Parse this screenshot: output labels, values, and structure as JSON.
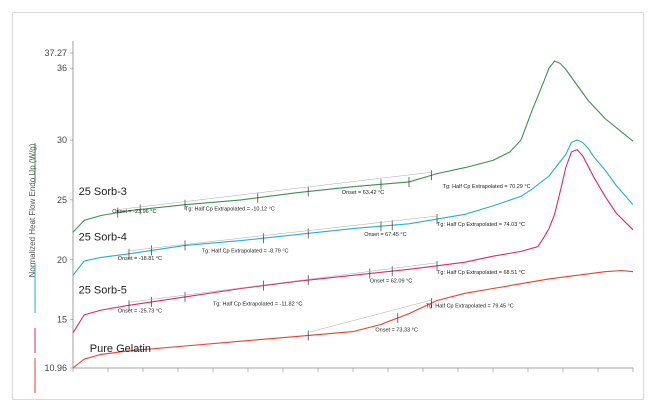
{
  "chart_data": {
    "type": "line",
    "ylabel": "Normalized Heat Flow Endo Up (W/g)",
    "ylim": [
      10.96,
      37.27
    ],
    "yticks": [
      "37.27",
      "36",
      "30",
      "25",
      "20",
      "15",
      "10.96"
    ],
    "ytick_values": [
      37.27,
      36,
      30,
      25,
      20,
      15,
      10.96
    ],
    "xlim": [
      0,
      100
    ],
    "grid": false,
    "legend": "left-vertical",
    "series": [
      {
        "name": "25 Sorb-3",
        "color": "#3f8f55",
        "x": [
          0,
          2,
          5,
          10,
          20,
          30,
          40,
          50,
          60,
          65,
          70,
          75,
          78,
          80,
          82,
          84,
          85,
          86,
          87,
          88,
          90,
          92,
          95,
          100
        ],
        "y": [
          22.3,
          23.3,
          23.7,
          24.1,
          24.6,
          25.0,
          25.6,
          26.1,
          26.5,
          27.2,
          27.7,
          28.3,
          29.0,
          30.0,
          32.5,
          34.8,
          36.0,
          36.6,
          36.4,
          35.9,
          34.6,
          33.3,
          31.8,
          29.9
        ]
      },
      {
        "name": "25 Sorb-4",
        "color": "#2aaed0",
        "x": [
          0,
          2,
          5,
          10,
          20,
          30,
          40,
          50,
          60,
          65,
          70,
          75,
          80,
          82,
          85,
          88,
          89,
          90,
          91,
          92,
          93,
          95,
          97,
          100
        ],
        "y": [
          18.7,
          19.9,
          20.2,
          20.5,
          21.2,
          21.6,
          22.1,
          22.6,
          23.0,
          23.4,
          23.8,
          24.5,
          25.3,
          25.9,
          27.0,
          28.8,
          29.8,
          30.0,
          29.8,
          29.3,
          28.6,
          27.5,
          26.2,
          24.6
        ]
      },
      {
        "name": "25 Sorb-5",
        "color": "#dd2a6a",
        "x": [
          0,
          2,
          5,
          10,
          20,
          30,
          40,
          50,
          60,
          65,
          70,
          75,
          80,
          83,
          84,
          85,
          86,
          87,
          88,
          89,
          90,
          91,
          92,
          93,
          95,
          97,
          100
        ],
        "y": [
          13.9,
          15.4,
          15.8,
          16.2,
          16.9,
          17.6,
          18.2,
          18.7,
          19.2,
          19.5,
          19.8,
          20.3,
          20.7,
          21.1,
          21.8,
          22.6,
          23.8,
          25.7,
          27.7,
          29.0,
          29.2,
          28.7,
          27.8,
          26.9,
          25.3,
          23.9,
          22.5
        ]
      },
      {
        "name": "Pure Gelatin",
        "color": "#ef3e2e",
        "x": [
          0,
          2,
          5,
          10,
          20,
          30,
          40,
          50,
          55,
          60,
          65,
          70,
          75,
          80,
          85,
          90,
          95,
          98,
          100
        ],
        "y": [
          10.96,
          11.7,
          12.1,
          12.4,
          12.8,
          13.2,
          13.6,
          14.0,
          14.6,
          15.5,
          16.6,
          17.2,
          17.6,
          18.0,
          18.4,
          18.7,
          19.0,
          19.1,
          19.0
        ]
      }
    ],
    "curve_labels": [
      {
        "text": "25 Sorb-3",
        "x": 1,
        "y": 25.4
      },
      {
        "text": "25 Sorb-4",
        "x": 1,
        "y": 21.6
      },
      {
        "text": "25 Sorb-5",
        "x": 1,
        "y": 17.2
      },
      {
        "text": "Pure Gelatin",
        "x": 3,
        "y": 12.3
      }
    ],
    "annotations": [
      {
        "text": "Onset = -23.96 °C",
        "x": 7,
        "y": 23.9
      },
      {
        "text": "Tg: Half Cp Extrapolated = -10.12 °C",
        "x": 20,
        "y": 24.1
      },
      {
        "text": "Onset = 63.42 °C",
        "x": 48,
        "y": 25.5
      },
      {
        "text": "Tg: Half Cp Extrapolated = 70.29 °C",
        "x": 66,
        "y": 26.0
      },
      {
        "text": "Onset = -18.81 °C",
        "x": 8,
        "y": 20.0
      },
      {
        "text": "Tg: Half Cp Extrapolated = -8.79 °C",
        "x": 23,
        "y": 20.6
      },
      {
        "text": "Onset = 67.45 °C",
        "x": 52,
        "y": 22.0
      },
      {
        "text": "Tg: Half Cp Extrapolated = 74.03 °C",
        "x": 65,
        "y": 22.8
      },
      {
        "text": "Onset = -25.73 °C",
        "x": 8,
        "y": 15.6
      },
      {
        "text": "Tg: Half Cp Extrapolated = -11.82 °C",
        "x": 25,
        "y": 16.2
      },
      {
        "text": "Onset = 62.09 °C",
        "x": 53,
        "y": 18.1
      },
      {
        "text": "Tg: Half Cp Extrapolated = 68.51 °C",
        "x": 65,
        "y": 18.8
      },
      {
        "text": "Tg: Half Cp Extrapolated = 79.45 °C",
        "x": 63,
        "y": 16.0
      },
      {
        "text": "Onset = 73.33 °C",
        "x": 54,
        "y": 14.0
      }
    ],
    "markers": [
      {
        "series": 0,
        "x": [
          8,
          12,
          20,
          33,
          42,
          55,
          60,
          64
        ]
      },
      {
        "series": 1,
        "x": [
          10,
          14,
          20,
          34,
          42,
          55,
          57,
          65
        ]
      },
      {
        "series": 2,
        "x": [
          10,
          14,
          20,
          34,
          42,
          53,
          57,
          65
        ]
      },
      {
        "series": 3,
        "x": [
          42,
          58,
          64
        ]
      }
    ]
  }
}
